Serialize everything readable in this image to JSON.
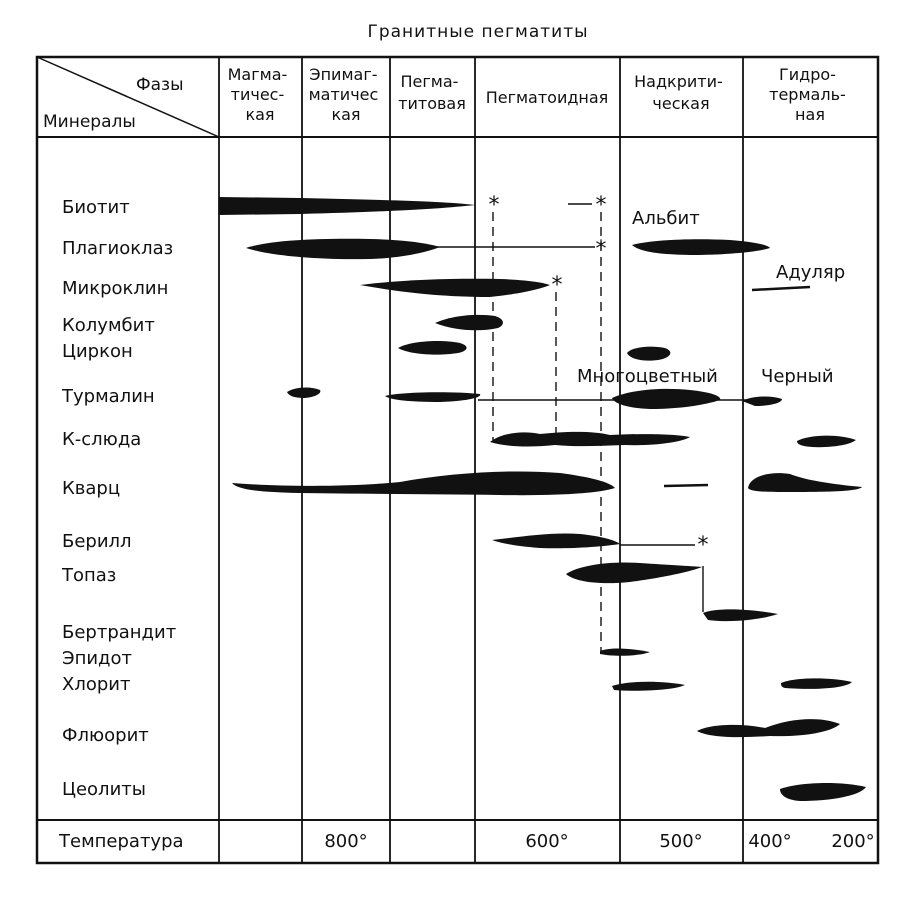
{
  "title": "Гранитные пегматиты",
  "corner": {
    "top_label": "Фазы",
    "bottom_label": "Минералы"
  },
  "phases": [
    {
      "lines": [
        "Магма-",
        "тичес-",
        "кая"
      ]
    },
    {
      "lines": [
        "Эпимаг-",
        "матичес",
        "кая"
      ]
    },
    {
      "lines": [
        "Пегма-",
        "титовая"
      ]
    },
    {
      "lines": [
        "Пегматоидная"
      ]
    },
    {
      "lines": [
        "Надкрити-",
        "ческая"
      ]
    },
    {
      "lines": [
        "Гидро-",
        "термаль-",
        "ная"
      ]
    }
  ],
  "minerals": [
    "Биотит",
    "Плагиоклаз",
    "Микроклин",
    "Колумбит",
    "Циркон",
    "Турмалин",
    "К-слюда",
    "Кварц",
    "Берилл",
    "Топаз",
    "Бертрандит",
    "Эпидот",
    "Хлорит",
    "Флюорит",
    "Цеолиты"
  ],
  "annotations": [
    "Альбит",
    "Адуляр",
    "Многоцветный",
    "Черный"
  ],
  "temperature": {
    "label": "Температура",
    "values": [
      "800°",
      "600°",
      "500°",
      "400°",
      "200°"
    ]
  },
  "colors": {
    "ink": "#111111",
    "background": "#ffffff"
  }
}
